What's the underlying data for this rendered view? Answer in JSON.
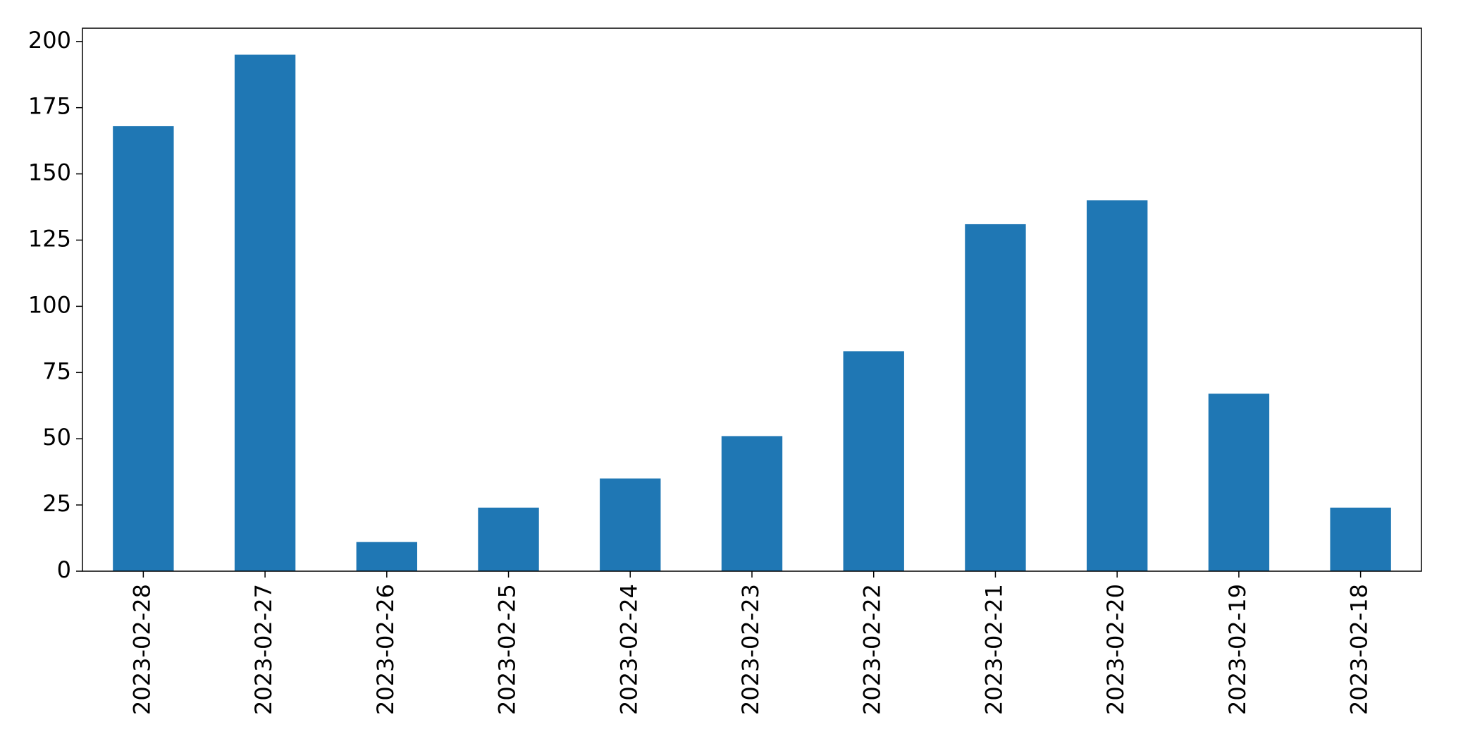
{
  "chart_data": {
    "type": "bar",
    "title": "",
    "xlabel": "",
    "ylabel": "",
    "categories": [
      "2023-02-28",
      "2023-02-27",
      "2023-02-26",
      "2023-02-25",
      "2023-02-24",
      "2023-02-23",
      "2023-02-22",
      "2023-02-21",
      "2023-02-20",
      "2023-02-19",
      "2023-02-18"
    ],
    "values": [
      168,
      195,
      11,
      24,
      35,
      51,
      83,
      131,
      140,
      67,
      24
    ],
    "ylim": [
      0,
      205
    ],
    "yticks": [
      0,
      25,
      50,
      75,
      100,
      125,
      150,
      175,
      200
    ],
    "bar_color": "#1f77b4",
    "grid": false,
    "legend": "none"
  }
}
